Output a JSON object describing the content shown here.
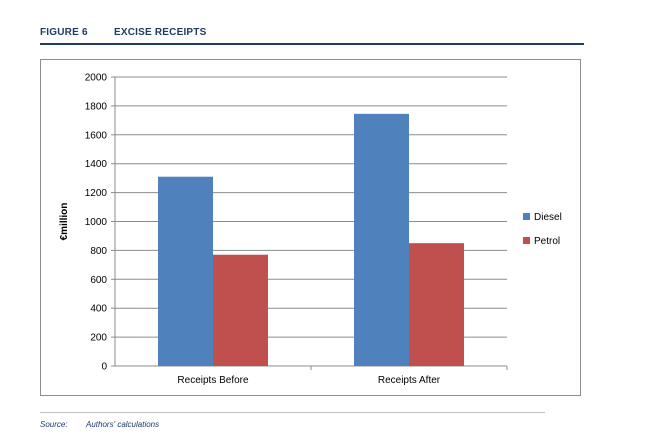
{
  "figure": {
    "number": "FIGURE 6",
    "title": "EXCISE RECEIPTS"
  },
  "source": {
    "label": "Source:",
    "text": "Authors' calculations"
  },
  "chart_data": {
    "type": "bar",
    "categories": [
      "Receipts Before",
      "Receipts After"
    ],
    "series": [
      {
        "name": "Diesel",
        "values": [
          1310,
          1745
        ],
        "color": "#4f81bd"
      },
      {
        "name": "Petrol",
        "values": [
          770,
          850
        ],
        "color": "#c0504d"
      }
    ],
    "ylabel": "€million",
    "ylim": [
      0,
      2000
    ],
    "yticks": [
      0,
      200,
      400,
      600,
      800,
      1000,
      1200,
      1400,
      1600,
      1800,
      2000
    ],
    "grid": true,
    "legend": "right"
  }
}
